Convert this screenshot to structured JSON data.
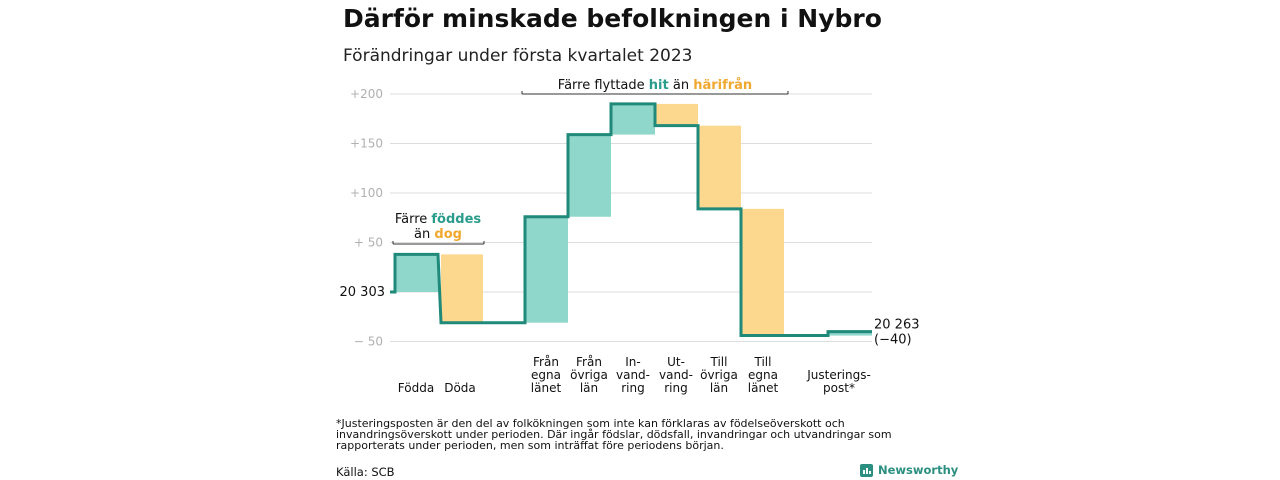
{
  "title": "Därför minskade befolkningen i Nybro",
  "subtitle": "Förändringar under första kvartalet 2023",
  "footnote": "*Justeringsposten är den del av folkökningen som inte kan förklaras av födelseöverskott och invandringsöverskott under perioden. Där ingår födslar, dödsfall, invandringar och utvandringar som rapporterats under perioden, men som inträffat före periodens början.",
  "source": "Källa: SCB",
  "brand": "Newsworthy",
  "colors": {
    "increase": "#8fd6cb",
    "decrease": "#fcd78e",
    "line": "#1f8a7a",
    "teal_text": "#2a9c8c",
    "orange_text": "#f0a830",
    "grid": "#dddddd",
    "tick": "#b0b0b0"
  },
  "chart_data": {
    "type": "bar",
    "subtype": "waterfall",
    "baseline": 20303,
    "baseline_label": "20 303",
    "end_value": 20263,
    "end_label": "20 263",
    "end_change_label": "(−40)",
    "y_ticks": [
      {
        "value": 200,
        "label": "+200"
      },
      {
        "value": 150,
        "label": "+150"
      },
      {
        "value": 100,
        "label": "+100"
      },
      {
        "value": 50,
        "label": "+ 50"
      },
      {
        "value": 0,
        "label": ""
      },
      {
        "value": -50,
        "label": "− 50"
      }
    ],
    "ylim": [
      -50,
      210
    ],
    "grid": true,
    "categories": [
      {
        "lines": [
          "Födda"
        ],
        "value": 38
      },
      {
        "lines": [
          "Döda"
        ],
        "value": -69
      },
      {
        "lines": [
          "Från",
          "egna",
          "länet"
        ],
        "value": 107
      },
      {
        "lines": [
          "Från",
          "övriga",
          "län"
        ],
        "value": 83
      },
      {
        "lines": [
          "In-",
          "vand-",
          "ring"
        ],
        "value": 31
      },
      {
        "lines": [
          "Ut-",
          "vand-",
          "ring"
        ],
        "value": -22
      },
      {
        "lines": [
          "Till",
          "övriga",
          "län"
        ],
        "value": -84
      },
      {
        "lines": [
          "Till",
          "egna",
          "länet"
        ],
        "value": -128
      },
      {
        "lines": [
          "Justerings-",
          "post*"
        ],
        "value": 4
      }
    ],
    "annotations": [
      {
        "prefix": "Färre",
        "teal": "föddes",
        "middle": "än",
        "orange": "dog"
      },
      {
        "prefix": "Färre flyttade",
        "teal": "hit",
        "middle": "än",
        "orange": "härifrån"
      }
    ]
  }
}
